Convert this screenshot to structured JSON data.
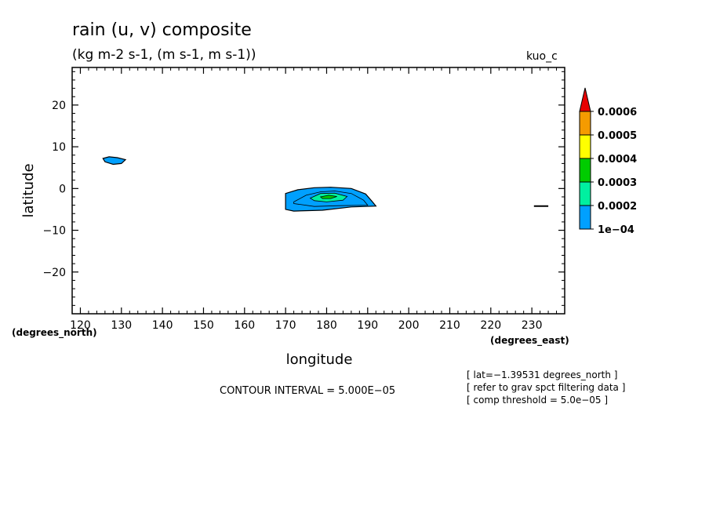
{
  "chart_data": {
    "type": "contour",
    "title": "rain (u, v) composite",
    "subtitle": "(kg m-2 s-1, (m s-1, m s-1))",
    "model_label": "kuo_c",
    "xlabel": "longitude",
    "ylabel": "latitude",
    "x_units": "(degrees_east)",
    "y_units": "(degrees_north)",
    "xlim": [
      118,
      238
    ],
    "ylim": [
      -30,
      29
    ],
    "x_ticks": [
      120,
      130,
      140,
      150,
      160,
      170,
      180,
      190,
      200,
      210,
      220,
      230
    ],
    "x_tick_labels": [
      "120",
      "130",
      "140",
      "150",
      "160",
      "170",
      "180",
      "190",
      "200",
      "210",
      "220",
      "230"
    ],
    "y_ticks": [
      20,
      10,
      0,
      -10,
      -20
    ],
    "y_tick_labels": [
      "20",
      "10",
      "0",
      "−10",
      "−20"
    ],
    "contour_interval_text": "CONTOUR INTERVAL = 5.000E−05",
    "notes": [
      "[ lat=−1.39531 degrees_north ]",
      "[ refer to grav spct filtering data ]",
      "[ comp threshold = 5.0e−05 ]"
    ],
    "levels": [
      0.0001,
      0.0002,
      0.0003,
      0.0004,
      0.0005,
      0.0006
    ],
    "colorbar": {
      "labels": [
        "0.0006",
        "0.0005",
        "0.0004",
        "0.0003",
        "0.0002",
        "1e−04"
      ],
      "colors": [
        "#f59b00",
        "#ffff00",
        "#00cc00",
        "#00f0a0",
        "#00a0ff"
      ],
      "extend_color": "#e80000"
    },
    "filled_regions": [
      {
        "level": 0.0001,
        "color": "#00a0ff",
        "points": [
          [
            125.5,
            7.2
          ],
          [
            127,
            7.6
          ],
          [
            129,
            7.4
          ],
          [
            131,
            6.9
          ],
          [
            130,
            6
          ],
          [
            128,
            5.8
          ],
          [
            126,
            6.4
          ],
          [
            125.5,
            7.2
          ]
        ]
      },
      {
        "level": 0.0001,
        "color": "#00a0ff",
        "points": [
          [
            170,
            -1.2
          ],
          [
            173,
            -0.3
          ],
          [
            177,
            0.2
          ],
          [
            181,
            0.3
          ],
          [
            186,
            0
          ],
          [
            189.5,
            -1.3
          ],
          [
            191,
            -3
          ],
          [
            192,
            -4.2
          ],
          [
            186,
            -4.4
          ],
          [
            179,
            -5.2
          ],
          [
            172,
            -5.4
          ],
          [
            170,
            -5
          ],
          [
            170,
            -3
          ],
          [
            170,
            -1.2
          ]
        ]
      },
      {
        "level": 0.0002,
        "color": "#00a0ff",
        "points": [
          [
            172,
            -3.2
          ],
          [
            175,
            -1.6
          ],
          [
            178.5,
            -0.8
          ],
          [
            182,
            -0.6
          ],
          [
            186,
            -1.2
          ],
          [
            189,
            -2.8
          ],
          [
            190,
            -4
          ],
          [
            183,
            -4.1
          ],
          [
            177,
            -4.3
          ],
          [
            172,
            -3.6
          ],
          [
            172,
            -3.2
          ]
        ]
      },
      {
        "level": 0.0003,
        "color": "#00f0a0",
        "points": [
          [
            176,
            -2.3
          ],
          [
            178.5,
            -1.2
          ],
          [
            182,
            -1.1
          ],
          [
            185,
            -1.9
          ],
          [
            184,
            -2.8
          ],
          [
            180,
            -3.2
          ],
          [
            177,
            -2.9
          ],
          [
            176,
            -2.3
          ]
        ]
      },
      {
        "level": 0.0004,
        "color": "#00cc00",
        "points": [
          [
            178.5,
            -2.0
          ],
          [
            180.5,
            -1.6
          ],
          [
            182.5,
            -1.9
          ],
          [
            181,
            -2.4
          ],
          [
            179,
            -2.4
          ],
          [
            178.5,
            -2.0
          ]
        ]
      }
    ],
    "line_segments": [
      {
        "points": [
          [
            230.5,
            -4.2
          ],
          [
            234,
            -4.2
          ]
        ]
      }
    ]
  }
}
